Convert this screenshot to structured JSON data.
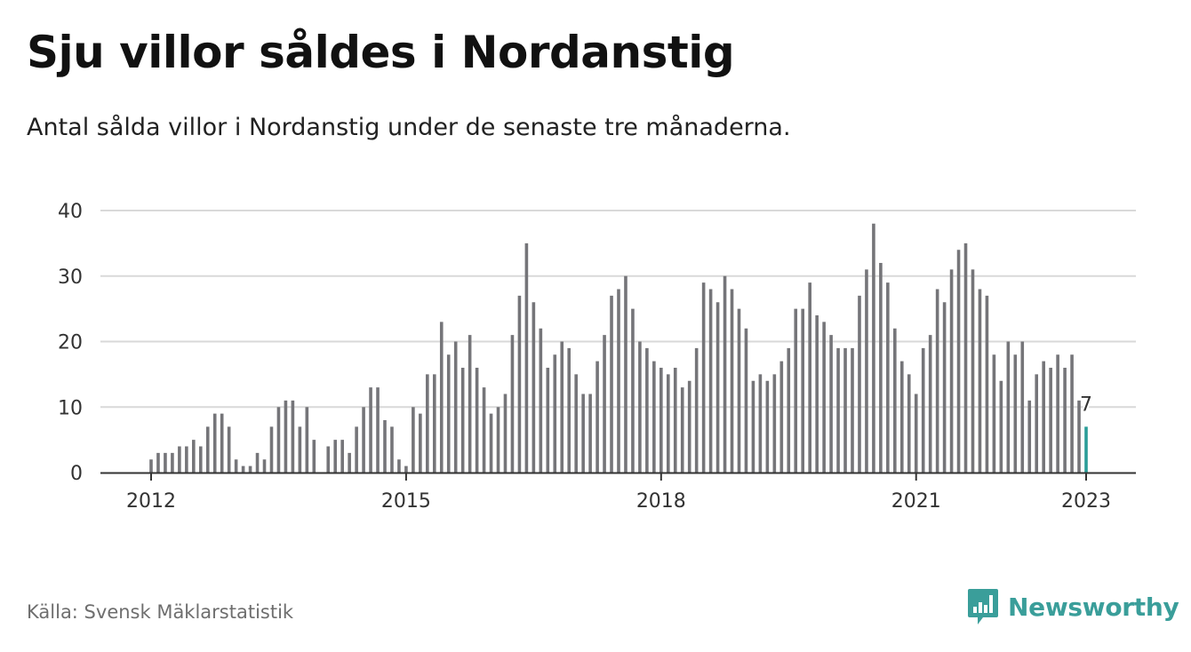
{
  "header": {
    "title": "Sju villor såldes i Nordanstig",
    "subtitle": "Antal sålda villor i Nordanstig under de senaste tre månaderna."
  },
  "footer": {
    "source": "Källa: Svensk Mäklarstatistik",
    "brand": "Newsworthy",
    "brand_icon": "bar-chart-speech-bubble-icon"
  },
  "colors": {
    "bar": "#757579",
    "highlight": "#2a9d98",
    "grid": "#d9d9d9",
    "axis": "#333333",
    "brand": "#3a9e9a"
  },
  "chart_data": {
    "type": "bar",
    "title": "Sju villor såldes i Nordanstig",
    "subtitle": "Antal sålda villor i Nordanstig under de senaste tre månaderna.",
    "xlabel": "",
    "ylabel": "",
    "ylim": [
      0,
      40
    ],
    "yticks": [
      0,
      10,
      20,
      30,
      40
    ],
    "xticks": [
      {
        "label": "2012",
        "date": "2012-01"
      },
      {
        "label": "2015",
        "date": "2015-01"
      },
      {
        "label": "2018",
        "date": "2018-01"
      },
      {
        "label": "2021",
        "date": "2021-01"
      },
      {
        "label": "2023",
        "date": "2023-01"
      }
    ],
    "grid": true,
    "legend": "none",
    "x_start": "2012-01",
    "x_end": "2023-01",
    "annotation": {
      "date": "2023-01",
      "label": "7"
    },
    "values": [
      2,
      3,
      3,
      3,
      4,
      4,
      5,
      4,
      7,
      9,
      9,
      7,
      2,
      1,
      1,
      3,
      2,
      7,
      10,
      11,
      11,
      7,
      10,
      5,
      null,
      4,
      5,
      5,
      3,
      7,
      10,
      13,
      13,
      8,
      7,
      2,
      1,
      10,
      9,
      15,
      15,
      23,
      18,
      20,
      16,
      21,
      16,
      13,
      9,
      10,
      12,
      21,
      27,
      35,
      26,
      22,
      16,
      18,
      20,
      19,
      15,
      12,
      12,
      17,
      21,
      27,
      28,
      30,
      25,
      20,
      19,
      17,
      16,
      15,
      16,
      13,
      14,
      19,
      29,
      28,
      26,
      30,
      28,
      25,
      22,
      14,
      15,
      14,
      15,
      17,
      19,
      25,
      25,
      29,
      24,
      23,
      21,
      19,
      19,
      19,
      27,
      31,
      38,
      32,
      29,
      22,
      17,
      15,
      12,
      19,
      21,
      28,
      26,
      31,
      34,
      35,
      31,
      28,
      27,
      18,
      14,
      20,
      18,
      20,
      11,
      15,
      17,
      16,
      18,
      16,
      18,
      11,
      7
    ]
  }
}
